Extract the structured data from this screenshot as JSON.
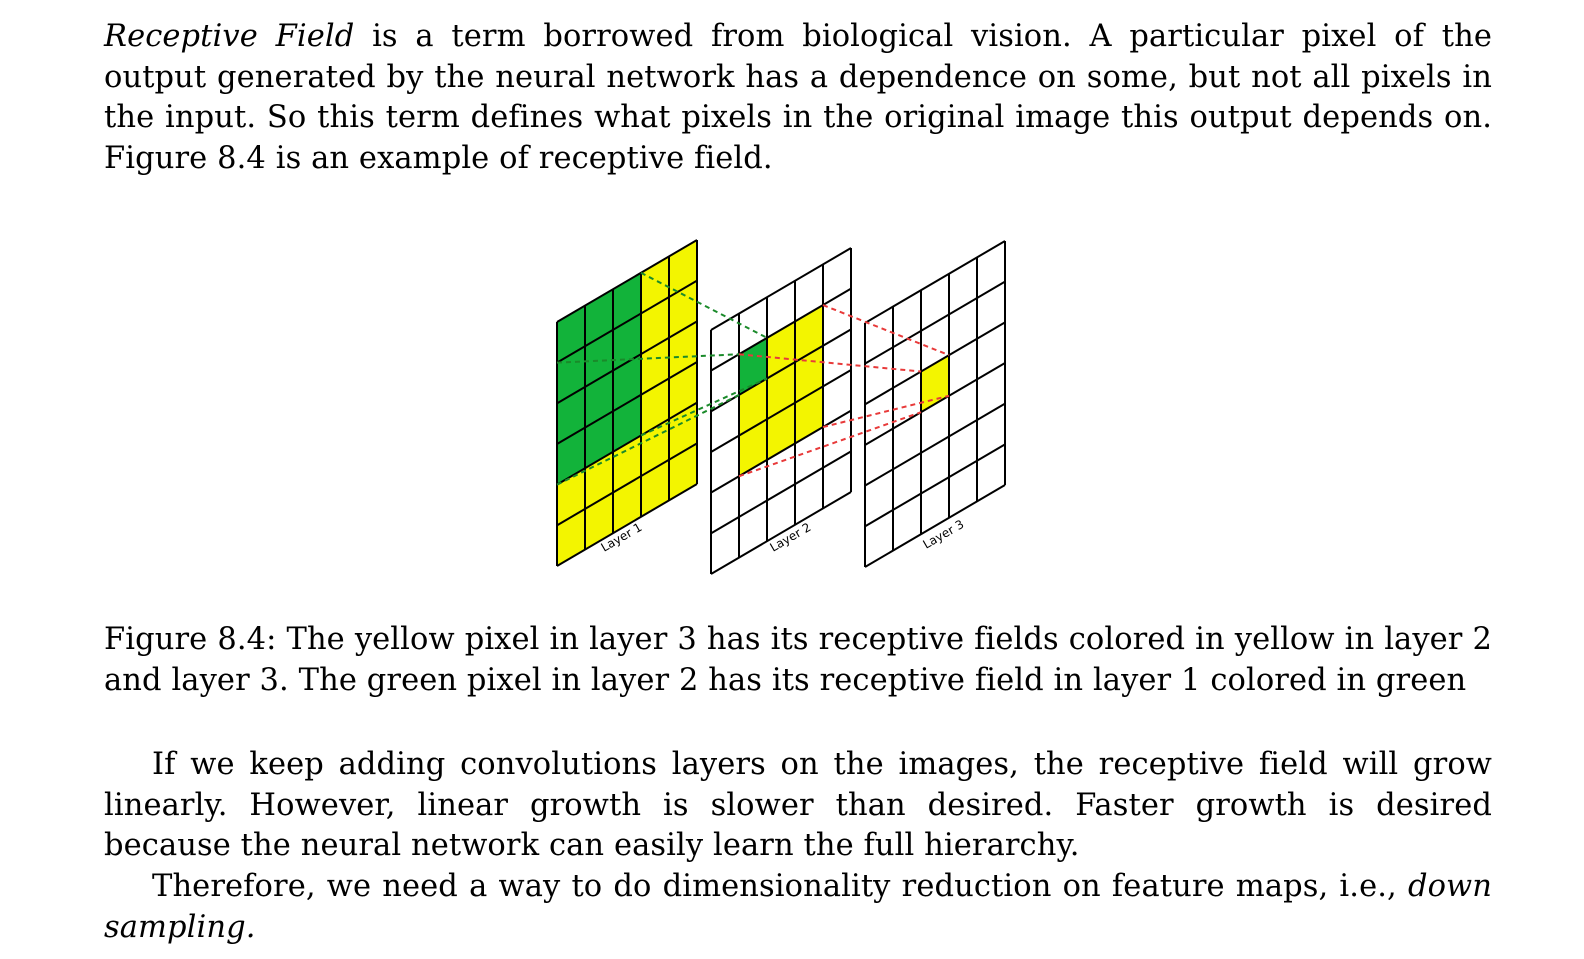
{
  "paragraph1": {
    "term": "Receptive Field",
    "text": " is a term borrowed from biological vision. A particular pixel of the output generated by the neural network has a dependence on some, but not all pixels in the input. So this term defines what pixels in the original image this output depends on. Figure 8.4 is an example of receptive field."
  },
  "figure": {
    "layer_labels": [
      "Layer 1",
      "Layer 2",
      "Layer 3"
    ],
    "colors": {
      "green": "#12b33a",
      "yellow": "#f3f500",
      "green_dash": "#1a8a2a",
      "red_dash": "#e83a3a",
      "grid": "#000000"
    }
  },
  "caption": "Figure 8.4: The yellow pixel in layer 3 has its receptive fields colored in yellow in layer 2 and layer 3. The green pixel in layer 2 has its receptive field in layer 1 colored in green",
  "paragraph2": "If we keep adding convolutions layers on the images, the receptive field will grow linearly. However, linear growth is slower than desired. Faster growth is desired because the neural network can easily learn the full hierarchy.",
  "paragraph3": {
    "text": "Therefore, we need a way to do dimensionality reduction on feature maps, i.e., ",
    "emph": "down sampling."
  }
}
